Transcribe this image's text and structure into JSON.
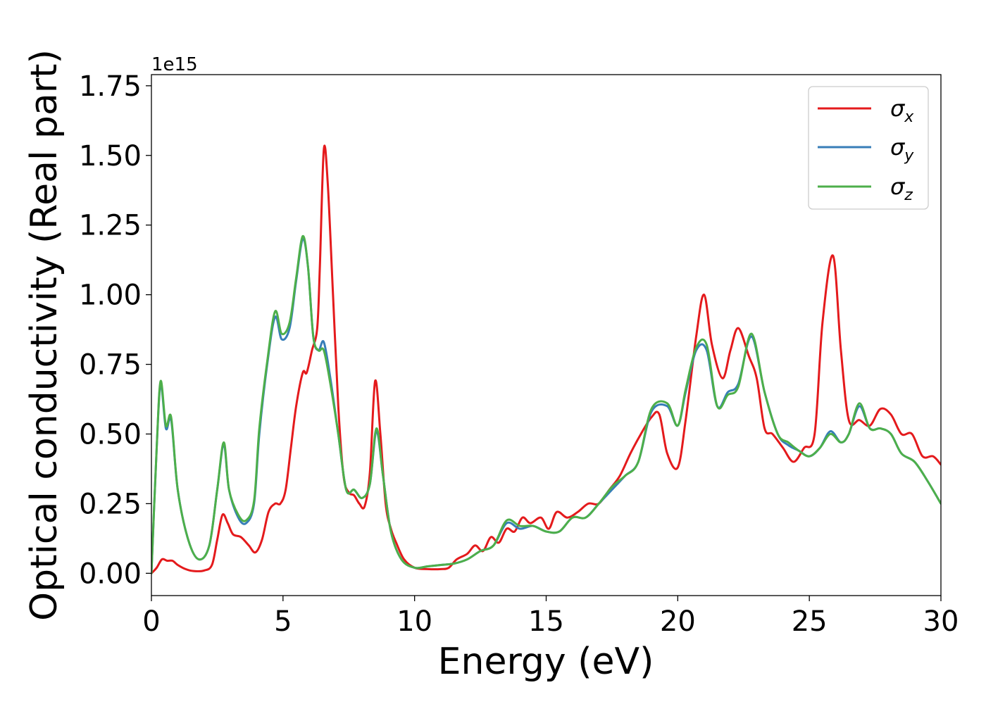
{
  "chart_data": {
    "type": "line",
    "xlabel": "Energy (eV)",
    "ylabel": "Optical conductivity (Real part)",
    "y_offset_label": "1e15",
    "xlim": [
      0,
      30
    ],
    "ylim": [
      -0.08,
      1.79
    ],
    "x_ticks": [
      0,
      5,
      10,
      15,
      20,
      25,
      30
    ],
    "x_tick_labels": [
      "0",
      "5",
      "10",
      "15",
      "20",
      "25",
      "30"
    ],
    "y_ticks": [
      0,
      0.25,
      0.5,
      0.75,
      1.0,
      1.25,
      1.5,
      1.75
    ],
    "y_tick_labels": [
      "0.00",
      "0.25",
      "0.50",
      "0.75",
      "1.00",
      "1.25",
      "1.50",
      "1.75"
    ],
    "grid": false,
    "legend_position": "top-right",
    "series": [
      {
        "name": "σx",
        "symbol": "σ",
        "subscript": "x",
        "color": "#e41a1c",
        "points": [
          [
            0,
            0
          ],
          [
            0.2,
            0.02
          ],
          [
            0.4,
            0.05
          ],
          [
            0.6,
            0.045
          ],
          [
            0.8,
            0.045
          ],
          [
            1,
            0.03
          ],
          [
            1.3,
            0.015
          ],
          [
            1.6,
            0.008
          ],
          [
            2,
            0.01
          ],
          [
            2.3,
            0.03
          ],
          [
            2.5,
            0.12
          ],
          [
            2.7,
            0.21
          ],
          [
            2.9,
            0.18
          ],
          [
            3.1,
            0.14
          ],
          [
            3.4,
            0.13
          ],
          [
            3.7,
            0.1
          ],
          [
            3.95,
            0.075
          ],
          [
            4.2,
            0.12
          ],
          [
            4.45,
            0.22
          ],
          [
            4.7,
            0.25
          ],
          [
            4.9,
            0.25
          ],
          [
            5.1,
            0.3
          ],
          [
            5.3,
            0.45
          ],
          [
            5.5,
            0.6
          ],
          [
            5.75,
            0.72
          ],
          [
            5.9,
            0.72
          ],
          [
            6.1,
            0.8
          ],
          [
            6.3,
            0.88
          ],
          [
            6.4,
            1.1
          ],
          [
            6.55,
            1.52
          ],
          [
            6.7,
            1.4
          ],
          [
            6.9,
            1.0
          ],
          [
            7.1,
            0.6
          ],
          [
            7.3,
            0.35
          ],
          [
            7.5,
            0.29
          ],
          [
            7.7,
            0.28
          ],
          [
            7.9,
            0.25
          ],
          [
            8.1,
            0.24
          ],
          [
            8.3,
            0.36
          ],
          [
            8.5,
            0.69
          ],
          [
            8.7,
            0.5
          ],
          [
            8.9,
            0.25
          ],
          [
            9.1,
            0.16
          ],
          [
            9.3,
            0.11
          ],
          [
            9.6,
            0.05
          ],
          [
            10,
            0.02
          ],
          [
            10.5,
            0.015
          ],
          [
            11,
            0.015
          ],
          [
            11.3,
            0.02
          ],
          [
            11.6,
            0.05
          ],
          [
            12,
            0.07
          ],
          [
            12.3,
            0.1
          ],
          [
            12.6,
            0.08
          ],
          [
            12.9,
            0.13
          ],
          [
            13.2,
            0.11
          ],
          [
            13.5,
            0.16
          ],
          [
            13.8,
            0.15
          ],
          [
            14.1,
            0.2
          ],
          [
            14.4,
            0.18
          ],
          [
            14.8,
            0.2
          ],
          [
            15.1,
            0.16
          ],
          [
            15.4,
            0.22
          ],
          [
            15.8,
            0.2
          ],
          [
            16.2,
            0.22
          ],
          [
            16.6,
            0.25
          ],
          [
            17,
            0.25
          ],
          [
            17.4,
            0.3
          ],
          [
            17.8,
            0.35
          ],
          [
            18.2,
            0.43
          ],
          [
            18.6,
            0.5
          ],
          [
            19,
            0.56
          ],
          [
            19.3,
            0.57
          ],
          [
            19.6,
            0.43
          ],
          [
            20,
            0.38
          ],
          [
            20.3,
            0.55
          ],
          [
            20.7,
            0.85
          ],
          [
            21,
            1.0
          ],
          [
            21.3,
            0.82
          ],
          [
            21.7,
            0.7
          ],
          [
            22,
            0.8
          ],
          [
            22.3,
            0.88
          ],
          [
            22.7,
            0.78
          ],
          [
            23,
            0.7
          ],
          [
            23.3,
            0.52
          ],
          [
            23.6,
            0.5
          ],
          [
            24,
            0.45
          ],
          [
            24.4,
            0.4
          ],
          [
            24.8,
            0.45
          ],
          [
            25.2,
            0.5
          ],
          [
            25.5,
            0.9
          ],
          [
            25.9,
            1.14
          ],
          [
            26.2,
            0.8
          ],
          [
            26.5,
            0.55
          ],
          [
            26.9,
            0.55
          ],
          [
            27.3,
            0.53
          ],
          [
            27.7,
            0.59
          ],
          [
            28.1,
            0.57
          ],
          [
            28.5,
            0.5
          ],
          [
            28.9,
            0.5
          ],
          [
            29.3,
            0.42
          ],
          [
            29.7,
            0.42
          ],
          [
            30,
            0.39
          ]
        ]
      },
      {
        "name": "σy",
        "symbol": "σ",
        "subscript": "y",
        "color": "#377eb8",
        "points": [
          [
            0,
            0
          ],
          [
            0.2,
            0.45
          ],
          [
            0.35,
            0.68
          ],
          [
            0.55,
            0.52
          ],
          [
            0.75,
            0.55
          ],
          [
            1,
            0.3
          ],
          [
            1.4,
            0.12
          ],
          [
            1.8,
            0.05
          ],
          [
            2.2,
            0.1
          ],
          [
            2.5,
            0.3
          ],
          [
            2.75,
            0.46
          ],
          [
            2.95,
            0.3
          ],
          [
            3.3,
            0.2
          ],
          [
            3.6,
            0.18
          ],
          [
            3.9,
            0.25
          ],
          [
            4.1,
            0.5
          ],
          [
            4.4,
            0.75
          ],
          [
            4.7,
            0.92
          ],
          [
            4.95,
            0.84
          ],
          [
            5.25,
            0.88
          ],
          [
            5.5,
            1.05
          ],
          [
            5.75,
            1.2
          ],
          [
            5.95,
            1.1
          ],
          [
            6.15,
            0.85
          ],
          [
            6.35,
            0.8
          ],
          [
            6.55,
            0.83
          ],
          [
            6.8,
            0.7
          ],
          [
            7.1,
            0.5
          ],
          [
            7.4,
            0.3
          ],
          [
            7.7,
            0.3
          ],
          [
            8,
            0.27
          ],
          [
            8.3,
            0.32
          ],
          [
            8.55,
            0.51
          ],
          [
            8.8,
            0.35
          ],
          [
            9.1,
            0.15
          ],
          [
            9.5,
            0.05
          ],
          [
            10,
            0.02
          ],
          [
            10.5,
            0.025
          ],
          [
            11,
            0.03
          ],
          [
            11.5,
            0.035
          ],
          [
            12,
            0.05
          ],
          [
            12.5,
            0.08
          ],
          [
            13,
            0.1
          ],
          [
            13.5,
            0.18
          ],
          [
            14,
            0.16
          ],
          [
            14.5,
            0.17
          ],
          [
            15,
            0.15
          ],
          [
            15.5,
            0.15
          ],
          [
            16,
            0.2
          ],
          [
            16.5,
            0.2
          ],
          [
            17,
            0.25
          ],
          [
            17.5,
            0.3
          ],
          [
            18,
            0.35
          ],
          [
            18.5,
            0.4
          ],
          [
            19,
            0.58
          ],
          [
            19.6,
            0.6
          ],
          [
            20,
            0.53
          ],
          [
            20.3,
            0.65
          ],
          [
            20.7,
            0.8
          ],
          [
            21.1,
            0.8
          ],
          [
            21.5,
            0.6
          ],
          [
            21.9,
            0.65
          ],
          [
            22.3,
            0.68
          ],
          [
            22.8,
            0.85
          ],
          [
            23.3,
            0.65
          ],
          [
            23.8,
            0.5
          ],
          [
            24.2,
            0.46
          ],
          [
            24.6,
            0.44
          ],
          [
            25,
            0.42
          ],
          [
            25.4,
            0.45
          ],
          [
            25.8,
            0.51
          ],
          [
            26.2,
            0.47
          ],
          [
            26.5,
            0.5
          ],
          [
            26.9,
            0.6
          ],
          [
            27.3,
            0.52
          ],
          [
            27.7,
            0.52
          ],
          [
            28.1,
            0.5
          ],
          [
            28.5,
            0.43
          ],
          [
            29,
            0.4
          ],
          [
            29.5,
            0.33
          ],
          [
            30,
            0.25
          ]
        ]
      },
      {
        "name": "σz",
        "symbol": "σ",
        "subscript": "z",
        "color": "#4daf4a",
        "points": [
          [
            0,
            0
          ],
          [
            0.2,
            0.45
          ],
          [
            0.35,
            0.69
          ],
          [
            0.55,
            0.53
          ],
          [
            0.75,
            0.56
          ],
          [
            1,
            0.3
          ],
          [
            1.4,
            0.12
          ],
          [
            1.8,
            0.05
          ],
          [
            2.2,
            0.1
          ],
          [
            2.5,
            0.3
          ],
          [
            2.75,
            0.47
          ],
          [
            2.95,
            0.3
          ],
          [
            3.3,
            0.21
          ],
          [
            3.6,
            0.19
          ],
          [
            3.9,
            0.26
          ],
          [
            4.1,
            0.52
          ],
          [
            4.4,
            0.76
          ],
          [
            4.7,
            0.94
          ],
          [
            4.95,
            0.86
          ],
          [
            5.25,
            0.9
          ],
          [
            5.5,
            1.06
          ],
          [
            5.75,
            1.21
          ],
          [
            5.95,
            1.1
          ],
          [
            6.15,
            0.85
          ],
          [
            6.35,
            0.8
          ],
          [
            6.55,
            0.8
          ],
          [
            6.8,
            0.68
          ],
          [
            7.1,
            0.5
          ],
          [
            7.4,
            0.3
          ],
          [
            7.7,
            0.3
          ],
          [
            8,
            0.27
          ],
          [
            8.3,
            0.32
          ],
          [
            8.55,
            0.52
          ],
          [
            8.8,
            0.35
          ],
          [
            9.1,
            0.15
          ],
          [
            9.5,
            0.05
          ],
          [
            10,
            0.02
          ],
          [
            10.5,
            0.025
          ],
          [
            11,
            0.03
          ],
          [
            11.5,
            0.035
          ],
          [
            12,
            0.05
          ],
          [
            12.5,
            0.08
          ],
          [
            13,
            0.1
          ],
          [
            13.5,
            0.19
          ],
          [
            14,
            0.17
          ],
          [
            14.5,
            0.17
          ],
          [
            15,
            0.15
          ],
          [
            15.5,
            0.15
          ],
          [
            16,
            0.2
          ],
          [
            16.5,
            0.2
          ],
          [
            17,
            0.25
          ],
          [
            17.5,
            0.31
          ],
          [
            18,
            0.35
          ],
          [
            18.5,
            0.4
          ],
          [
            19,
            0.59
          ],
          [
            19.6,
            0.61
          ],
          [
            20,
            0.53
          ],
          [
            20.3,
            0.66
          ],
          [
            20.7,
            0.81
          ],
          [
            21.1,
            0.82
          ],
          [
            21.5,
            0.6
          ],
          [
            21.9,
            0.64
          ],
          [
            22.3,
            0.67
          ],
          [
            22.8,
            0.86
          ],
          [
            23.3,
            0.65
          ],
          [
            23.8,
            0.5
          ],
          [
            24.2,
            0.47
          ],
          [
            24.6,
            0.44
          ],
          [
            25,
            0.42
          ],
          [
            25.4,
            0.45
          ],
          [
            25.8,
            0.5
          ],
          [
            26.2,
            0.47
          ],
          [
            26.5,
            0.5
          ],
          [
            26.9,
            0.61
          ],
          [
            27.3,
            0.52
          ],
          [
            27.7,
            0.52
          ],
          [
            28.1,
            0.5
          ],
          [
            28.5,
            0.43
          ],
          [
            29,
            0.4
          ],
          [
            29.5,
            0.33
          ],
          [
            30,
            0.25
          ]
        ]
      }
    ]
  }
}
